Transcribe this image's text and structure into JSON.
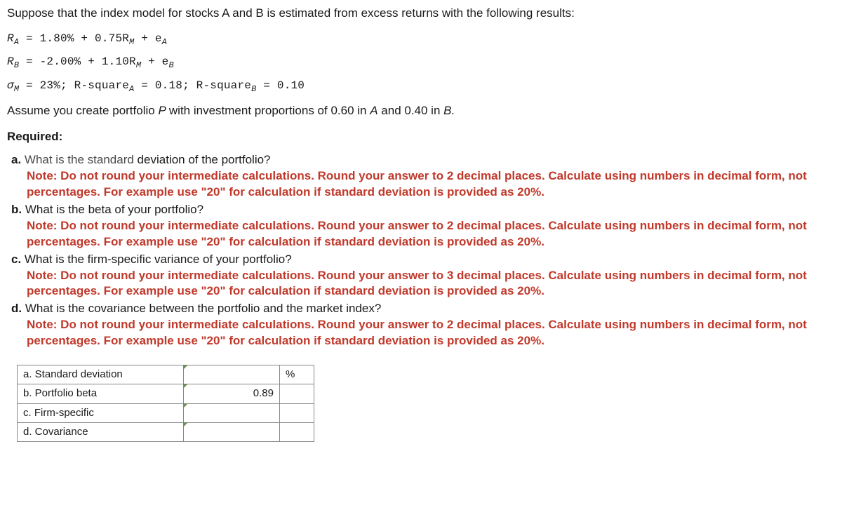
{
  "intro": "Suppose that the index model for stocks A and B is estimated from excess returns with the following results:",
  "eq": {
    "ra_lhs": "R",
    "ra_sub": "A",
    "ra_rhs1": " = 1.80% + 0.75R",
    "ra_msub": "M",
    "ra_rhs2": " + e",
    "ra_esub": "A",
    "rb_lhs": "R",
    "rb_sub": "B",
    "rb_rhs1": " = -2.00% + 1.10R",
    "rb_msub": "M",
    "rb_rhs2": " + e",
    "rb_esub": "B",
    "sigma": "σ",
    "sigma_sub": "M",
    "sigma_val": " = 23%; R-square",
    "rsqa_sub": "A",
    "rsqa_val": " = 0.18; R-square",
    "rsqb_sub": "B",
    "rsqb_val": " = 0.10"
  },
  "assume_pre": "Assume you create portfolio ",
  "assume_P": "P ",
  "assume_mid1": "with investment proportions of 0.60 in ",
  "assume_A": "A",
  "assume_mid2": " and 0.40 in ",
  "assume_B": "B.",
  "required": "Required:",
  "qa_label": "a. ",
  "qa_text_faded": "What is the standard",
  "qa_text_rest": " deviation of the portfolio?",
  "note_2dp": "Note: Do not round your intermediate calculations. Round your answer to 2 decimal places. Calculate using numbers in decimal form, not percentages. For example use \"20\" for calculation if standard deviation is provided as 20%.",
  "qb_label": "b. ",
  "qb_text": "What is the beta of your portfolio?",
  "qc_label": "c. ",
  "qc_text": "What is the firm-specific variance of your portfolio?",
  "note_3dp": "Note: Do not round your intermediate calculations. Round your answer to 3 decimal places. Calculate using numbers in decimal form, not percentages. For example use \"20\" for calculation if standard deviation is provided as 20%.",
  "qd_label": "d. ",
  "qd_text": "What is the covariance between the portfolio and the market index?",
  "table": {
    "rows": [
      {
        "label": "a. Standard deviation",
        "value": "",
        "unit": "%"
      },
      {
        "label": "b. Portfolio beta",
        "value": "0.89",
        "unit": ""
      },
      {
        "label": "c. Firm-specific",
        "value": "",
        "unit": ""
      },
      {
        "label": "d. Covariance",
        "value": "",
        "unit": ""
      }
    ]
  },
  "colors": {
    "note_color": "#c0392b",
    "text_color": "#1a1a1a",
    "corner_color": "#6b8e5a",
    "border_color": "#888888"
  }
}
